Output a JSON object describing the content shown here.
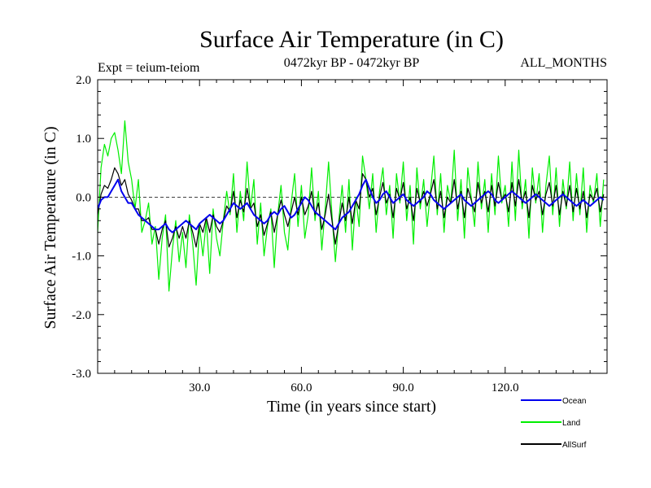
{
  "chart_data": {
    "type": "line",
    "title": "Surface Air Temperature (in C)",
    "subtitle_left": "Expt = teium-teiom",
    "subtitle_center": "0472kyr BP - 0472kyr BP",
    "subtitle_right": "ALL_MONTHS",
    "xlabel": "Time (in years since start)",
    "ylabel": "Surface Air Temperature (in C)",
    "xlim": [
      0,
      150
    ],
    "ylim": [
      -3.0,
      2.0
    ],
    "x_ticks": [
      {
        "value": 30,
        "label": "30.0"
      },
      {
        "value": 60,
        "label": "60.0"
      },
      {
        "value": 90,
        "label": "90.0"
      },
      {
        "value": 120,
        "label": "120.0"
      }
    ],
    "y_ticks": [
      {
        "value": 2.0,
        "label": "2.0"
      },
      {
        "value": 1.0,
        "label": "1.0"
      },
      {
        "value": 0.0,
        "label": "0.0"
      },
      {
        "value": -1.0,
        "label": "-1.0"
      },
      {
        "value": -2.0,
        "label": "-2.0"
      },
      {
        "value": -3.0,
        "label": "-3.0"
      }
    ],
    "zero_line": 0.0,
    "series": [
      {
        "name": "Land",
        "color": "#00ee00",
        "x_step": 1,
        "values": [
          -0.6,
          0.5,
          0.9,
          0.7,
          1.0,
          1.1,
          0.8,
          0.4,
          1.3,
          0.6,
          0.3,
          -0.2,
          0.3,
          -0.6,
          -0.4,
          -0.1,
          -0.8,
          -0.5,
          -1.4,
          -0.7,
          -0.3,
          -1.6,
          -0.9,
          -0.4,
          -1.1,
          -0.6,
          -1.2,
          -0.3,
          -0.8,
          -1.5,
          -0.5,
          -1.0,
          -0.4,
          -1.3,
          -0.2,
          -0.7,
          -1.0,
          -0.4,
          0.1,
          -0.3,
          0.4,
          -0.6,
          0.1,
          -0.4,
          0.6,
          -0.2,
          0.3,
          -0.8,
          -0.1,
          -1.0,
          -0.5,
          -0.2,
          -1.2,
          -0.3,
          0.2,
          -0.6,
          -0.9,
          -0.1,
          0.4,
          -0.5,
          0.2,
          -0.7,
          -0.3,
          0.5,
          -0.4,
          0.1,
          -0.9,
          -0.2,
          0.6,
          -0.3,
          -1.1,
          -0.4,
          0.2,
          -0.6,
          0.3,
          -0.9,
          0.0,
          -0.5,
          0.7,
          0.3,
          -0.2,
          0.4,
          -0.6,
          0.1,
          0.5,
          -0.3,
          0.2,
          -0.7,
          0.4,
          -0.1,
          0.6,
          -0.4,
          0.2,
          -0.8,
          0.5,
          -0.2,
          0.3,
          -0.5,
          0.1,
          0.7,
          -0.3,
          0.4,
          -0.6,
          0.2,
          -0.1,
          0.8,
          -0.4,
          0.3,
          -0.7,
          0.5,
          0.0,
          -0.5,
          0.6,
          -0.2,
          0.3,
          -0.6,
          0.4,
          -0.3,
          0.7,
          -0.1,
          0.2,
          -0.5,
          0.6,
          -0.4,
          0.8,
          -0.2,
          0.3,
          -0.7,
          0.5,
          -0.1,
          0.4,
          -0.6,
          0.2,
          0.7,
          -0.3,
          0.5,
          -0.5,
          0.3,
          -0.2,
          0.6,
          -0.4,
          0.4,
          -0.3,
          0.5,
          -0.6,
          0.2,
          -0.1,
          0.4,
          -0.5,
          0.3
        ]
      },
      {
        "name": "Ocean",
        "color": "#0000ee",
        "x_step": 1,
        "values": [
          -0.2,
          -0.05,
          0.0,
          0.0,
          0.1,
          0.2,
          0.3,
          0.1,
          0.0,
          -0.1,
          -0.1,
          -0.2,
          -0.3,
          -0.35,
          -0.4,
          -0.45,
          -0.5,
          -0.55,
          -0.55,
          -0.5,
          -0.45,
          -0.55,
          -0.6,
          -0.55,
          -0.5,
          -0.45,
          -0.4,
          -0.45,
          -0.5,
          -0.55,
          -0.45,
          -0.4,
          -0.35,
          -0.3,
          -0.35,
          -0.4,
          -0.45,
          -0.4,
          -0.3,
          -0.2,
          -0.1,
          -0.15,
          -0.2,
          -0.15,
          -0.1,
          -0.2,
          -0.3,
          -0.35,
          -0.4,
          -0.45,
          -0.4,
          -0.3,
          -0.25,
          -0.3,
          -0.2,
          -0.15,
          -0.25,
          -0.35,
          -0.3,
          -0.2,
          -0.1,
          0.0,
          -0.05,
          -0.15,
          -0.25,
          -0.3,
          -0.35,
          -0.4,
          -0.45,
          -0.5,
          -0.55,
          -0.45,
          -0.35,
          -0.3,
          -0.25,
          -0.15,
          -0.05,
          0.05,
          0.2,
          0.3,
          0.15,
          0.0,
          -0.1,
          -0.05,
          0.05,
          0.1,
          0.0,
          -0.1,
          -0.05,
          0.0,
          0.05,
          -0.05,
          -0.1,
          -0.15,
          -0.1,
          -0.05,
          0.0,
          0.1,
          0.05,
          -0.05,
          -0.1,
          -0.15,
          -0.2,
          -0.15,
          -0.1,
          -0.05,
          0.0,
          0.05,
          -0.05,
          -0.1,
          -0.15,
          -0.1,
          -0.05,
          0.0,
          0.05,
          0.1,
          0.05,
          -0.05,
          -0.1,
          -0.05,
          0.0,
          0.05,
          0.1,
          0.05,
          0.0,
          -0.05,
          -0.1,
          -0.05,
          0.0,
          0.05,
          0.0,
          -0.05,
          -0.1,
          -0.15,
          -0.1,
          -0.05,
          0.0,
          0.05,
          0.0,
          -0.05,
          -0.1,
          -0.15,
          -0.1,
          -0.05,
          -0.1,
          -0.15,
          -0.1,
          -0.05,
          0.0,
          -0.05
        ]
      },
      {
        "name": "AllSurf",
        "color": "#000000",
        "x_step": 1,
        "values": [
          -0.3,
          0.05,
          0.2,
          0.15,
          0.3,
          0.5,
          0.4,
          0.2,
          0.3,
          0.05,
          -0.05,
          -0.2,
          -0.2,
          -0.4,
          -0.4,
          -0.35,
          -0.55,
          -0.55,
          -0.8,
          -0.55,
          -0.4,
          -0.85,
          -0.7,
          -0.5,
          -0.7,
          -0.5,
          -0.7,
          -0.4,
          -0.6,
          -0.85,
          -0.45,
          -0.6,
          -0.35,
          -0.6,
          -0.3,
          -0.5,
          -0.6,
          -0.4,
          -0.15,
          -0.25,
          0.1,
          -0.35,
          -0.05,
          -0.25,
          0.15,
          -0.2,
          -0.1,
          -0.5,
          -0.3,
          -0.65,
          -0.45,
          -0.25,
          -0.6,
          -0.3,
          -0.05,
          -0.3,
          -0.5,
          -0.25,
          0.0,
          -0.3,
          0.0,
          -0.3,
          -0.15,
          0.1,
          -0.3,
          -0.1,
          -0.55,
          -0.3,
          0.05,
          -0.4,
          -0.8,
          -0.45,
          -0.1,
          -0.4,
          0.0,
          -0.45,
          -0.05,
          -0.2,
          0.4,
          0.3,
          0.0,
          0.15,
          -0.3,
          0.0,
          0.25,
          -0.1,
          0.05,
          -0.35,
          0.15,
          -0.05,
          0.25,
          -0.2,
          0.0,
          -0.4,
          0.15,
          -0.1,
          0.1,
          -0.15,
          0.05,
          0.3,
          -0.2,
          0.1,
          -0.35,
          0.0,
          -0.1,
          0.3,
          -0.2,
          0.1,
          -0.35,
          0.15,
          -0.05,
          -0.25,
          0.25,
          -0.1,
          0.1,
          -0.25,
          0.2,
          -0.15,
          0.25,
          -0.05,
          0.05,
          -0.25,
          0.25,
          -0.15,
          0.3,
          -0.1,
          0.1,
          -0.35,
          0.2,
          -0.05,
          0.1,
          -0.3,
          0.05,
          0.25,
          -0.15,
          0.2,
          -0.3,
          0.1,
          -0.15,
          0.2,
          -0.25,
          0.15,
          -0.2,
          0.1,
          -0.35,
          0.05,
          -0.05,
          0.15,
          -0.25,
          0.05
        ]
      }
    ],
    "legend": {
      "position": "bottom-right",
      "entries": [
        {
          "label": "Ocean",
          "color": "#0000ee"
        },
        {
          "label": "Land",
          "color": "#00ee00"
        },
        {
          "label": "AllSurf",
          "color": "#000000"
        }
      ]
    }
  }
}
